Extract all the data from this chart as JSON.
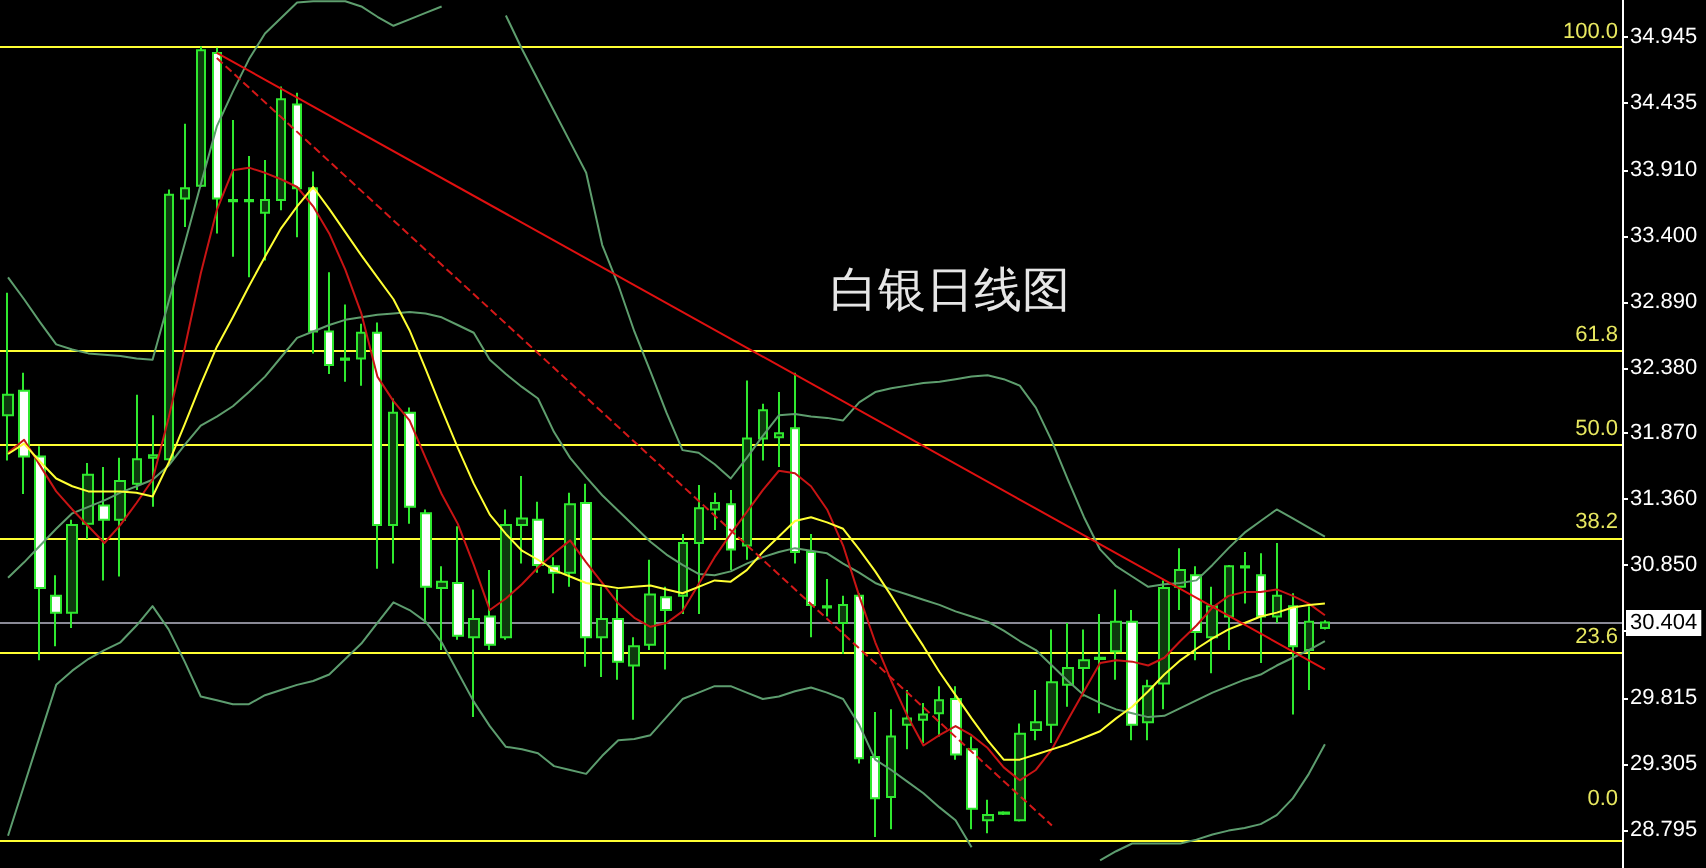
{
  "chart_data": {
    "type": "candlestick",
    "title": "白银日线图",
    "color": "#2fe82f",
    "tick_labels": "y",
    "categories": [
      null,
      null,
      null,
      null,
      null,
      null,
      null,
      null,
      null,
      null,
      null,
      null,
      null,
      null,
      null,
      null,
      null,
      null,
      null,
      null,
      null,
      null,
      null,
      null,
      null,
      null,
      null,
      null,
      null,
      null,
      null,
      null,
      null,
      null,
      null,
      null,
      null,
      null,
      null,
      null,
      null,
      null,
      null,
      null,
      null,
      null,
      null,
      null,
      null,
      null,
      null,
      null,
      null,
      null,
      null,
      null,
      null,
      null,
      null,
      null,
      null,
      null,
      null,
      null,
      null,
      null,
      null,
      null,
      null,
      null,
      null,
      null,
      null,
      null,
      null,
      null,
      null,
      null,
      null,
      null,
      null,
      null,
      null
    ],
    "ohlc": [
      [
        32.01,
        32.96,
        31.66,
        32.17
      ],
      [
        32.2,
        32.34,
        31.4,
        31.69
      ],
      [
        31.69,
        31.77,
        30.11,
        30.67
      ],
      [
        30.61,
        30.77,
        30.22,
        30.48
      ],
      [
        30.48,
        31.2,
        30.36,
        31.16
      ],
      [
        31.17,
        31.64,
        31.05,
        31.55
      ],
      [
        31.31,
        31.61,
        30.73,
        31.2
      ],
      [
        31.2,
        31.68,
        30.76,
        31.5
      ],
      [
        31.48,
        32.17,
        31.43,
        31.67
      ],
      [
        31.68,
        32.01,
        31.3,
        31.7
      ],
      [
        31.67,
        33.76,
        31.66,
        33.72
      ],
      [
        33.69,
        34.27,
        33.47,
        33.77
      ],
      [
        33.79,
        34.87,
        33.78,
        34.84
      ],
      [
        34.82,
        34.86,
        33.42,
        33.69
      ],
      [
        33.68,
        34.3,
        33.24,
        33.67
      ],
      [
        33.67,
        34.02,
        33.08,
        33.68
      ],
      [
        33.58,
        33.99,
        33.21,
        33.68
      ],
      [
        33.68,
        34.56,
        33.6,
        34.46
      ],
      [
        34.42,
        34.51,
        33.39,
        33.77
      ],
      [
        33.77,
        33.9,
        32.49,
        32.66
      ],
      [
        32.66,
        33.12,
        32.33,
        32.4
      ],
      [
        32.45,
        32.87,
        32.27,
        32.44
      ],
      [
        32.45,
        32.72,
        32.24,
        32.65
      ],
      [
        32.65,
        32.73,
        30.82,
        31.16
      ],
      [
        31.16,
        32.14,
        30.86,
        32.03
      ],
      [
        32.03,
        32.07,
        31.17,
        31.3
      ],
      [
        31.25,
        31.28,
        30.4,
        30.68
      ],
      [
        30.67,
        30.84,
        30.19,
        30.72
      ],
      [
        30.71,
        31.15,
        30.27,
        30.3
      ],
      [
        30.29,
        30.66,
        29.67,
        30.43
      ],
      [
        30.45,
        30.81,
        30.19,
        30.23
      ],
      [
        30.29,
        31.28,
        30.27,
        31.16
      ],
      [
        31.16,
        31.54,
        30.86,
        31.21
      ],
      [
        31.2,
        31.34,
        30.79,
        30.85
      ],
      [
        30.84,
        30.91,
        30.63,
        30.79
      ],
      [
        30.79,
        31.41,
        30.68,
        31.32
      ],
      [
        31.33,
        31.48,
        30.06,
        30.29
      ],
      [
        30.29,
        30.68,
        29.98,
        30.43
      ],
      [
        30.43,
        30.66,
        29.96,
        30.1
      ],
      [
        30.07,
        30.29,
        29.65,
        30.22
      ],
      [
        30.23,
        30.89,
        30.19,
        30.62
      ],
      [
        30.6,
        30.68,
        30.04,
        30.5
      ],
      [
        30.61,
        31.09,
        30.47,
        31.02
      ],
      [
        31.02,
        31.47,
        30.47,
        31.29
      ],
      [
        31.28,
        31.41,
        31.12,
        31.33
      ],
      [
        31.32,
        31.43,
        30.81,
        30.97
      ],
      [
        31,
        32.28,
        30.89,
        31.83
      ],
      [
        31.83,
        32.1,
        31.66,
        32.05
      ],
      [
        31.84,
        32.19,
        31.61,
        31.87
      ],
      [
        31.91,
        32.34,
        30.86,
        30.95
      ],
      [
        30.95,
        31.09,
        30.29,
        30.54
      ],
      [
        30.53,
        30.74,
        30.45,
        30.52
      ],
      [
        30.4,
        30.61,
        30.16,
        30.54
      ],
      [
        30.61,
        30.63,
        29.31,
        29.35
      ],
      [
        29.36,
        29.71,
        28.74,
        29.04
      ],
      [
        29.05,
        29.73,
        28.8,
        29.52
      ],
      [
        29.61,
        29.88,
        29.42,
        29.66
      ],
      [
        29.65,
        29.78,
        29.47,
        29.69
      ],
      [
        29.7,
        29.91,
        29.52,
        29.8
      ],
      [
        29.81,
        29.91,
        29.34,
        29.38
      ],
      [
        29.42,
        29.52,
        28.8,
        28.96
      ],
      [
        28.87,
        29.03,
        28.77,
        28.91
      ],
      [
        28.92,
        28.94,
        28.91,
        28.93
      ],
      [
        28.87,
        29.62,
        28.86,
        29.54
      ],
      [
        29.57,
        29.88,
        29.49,
        29.63
      ],
      [
        29.61,
        30.35,
        29.47,
        29.94
      ],
      [
        29.92,
        30.4,
        29.75,
        30.05
      ],
      [
        30.05,
        30.35,
        29.83,
        30.11
      ],
      [
        30.12,
        30.47,
        29.7,
        30.13
      ],
      [
        30.18,
        30.66,
        29.96,
        30.41
      ],
      [
        30.41,
        30.5,
        29.49,
        29.61
      ],
      [
        29.63,
        29.96,
        29.49,
        29.91
      ],
      [
        29.93,
        30.73,
        29.73,
        30.67
      ],
      [
        30.68,
        30.98,
        30.5,
        30.81
      ],
      [
        30.77,
        30.84,
        30.11,
        30.33
      ],
      [
        30.29,
        30.68,
        30.01,
        30.53
      ],
      [
        30.45,
        30.85,
        30.19,
        30.84
      ],
      [
        30.83,
        30.95,
        30.55,
        30.84
      ],
      [
        30.77,
        30.94,
        30.09,
        30.45
      ],
      [
        30.45,
        31.02,
        30.4,
        30.61
      ],
      [
        30.53,
        30.63,
        29.69,
        30.22
      ],
      [
        30.19,
        30.53,
        29.88,
        30.41
      ],
      [
        30.36,
        30.42,
        30.35,
        30.404
      ]
    ],
    "ylim": [
      28.5,
      35.23
    ],
    "yticks": [
      {
        "value": 34.945,
        "label": "34.945"
      },
      {
        "value": 34.435,
        "label": "34.435"
      },
      {
        "value": 33.91,
        "label": "33.910"
      },
      {
        "value": 33.4,
        "label": "33.400"
      },
      {
        "value": 32.89,
        "label": "32.890"
      },
      {
        "value": 32.38,
        "label": "32.380"
      },
      {
        "value": 31.87,
        "label": "31.870"
      },
      {
        "value": 31.36,
        "label": "31.360"
      },
      {
        "value": 30.85,
        "label": "30.850"
      },
      {
        "value": 30.34,
        "label": null
      },
      {
        "value": 29.815,
        "label": "29.815"
      },
      {
        "value": 29.305,
        "label": "29.305"
      },
      {
        "value": 28.795,
        "label": "28.795"
      }
    ],
    "series": [
      {
        "type": "line",
        "color": "#5e9e6e",
        "values": [
          33.08,
          32.91,
          32.73,
          32.56,
          32.52,
          32.49,
          32.48,
          32.47,
          32.45,
          32.44,
          32.89,
          33.34,
          33.8,
          34.25,
          34.52,
          34.77,
          34.97,
          35.09,
          35.21,
          35.22,
          35.22,
          35.22,
          35.18,
          35.1,
          35.03,
          35.08,
          35.13,
          35.18,
          null,
          null,
          null,
          35.11,
          34.85,
          34.61,
          34.37,
          34.13,
          33.89,
          33.33,
          33.02,
          32.66,
          32.35,
          32.03,
          31.74,
          31.72,
          31.63,
          31.52,
          31.68,
          31.85,
          32.01,
          32.02,
          32,
          31.99,
          31.97,
          32.11,
          32.19,
          32.22,
          32.24,
          32.26,
          32.27,
          32.29,
          32.31,
          32.32,
          32.29,
          32.24,
          32.07,
          31.81,
          31.51,
          31.22,
          30.97,
          30.84,
          30.76,
          30.68,
          30.7,
          30.71,
          30.73,
          30.85,
          30.98,
          31.1,
          31.19,
          31.28,
          31.21,
          31.14,
          31.07
        ]
      },
      {
        "type": "line",
        "color": "#5f9e6d",
        "values": [
          30.75,
          30.87,
          31,
          31.13,
          31.25,
          31.3,
          31.35,
          31.41,
          31.46,
          31.51,
          31.62,
          31.78,
          31.93,
          32,
          32.08,
          32.19,
          32.31,
          32.46,
          32.61,
          32.66,
          32.71,
          32.75,
          32.77,
          32.79,
          32.8,
          32.81,
          32.8,
          32.77,
          32.71,
          32.65,
          32.44,
          32.33,
          32.23,
          32.14,
          31.88,
          31.68,
          31.53,
          31.39,
          31.27,
          31.15,
          31.03,
          30.93,
          30.85,
          30.78,
          30.77,
          30.8,
          30.86,
          30.91,
          30.95,
          30.98,
          30.96,
          30.94,
          30.86,
          30.79,
          30.71,
          30.66,
          30.62,
          30.58,
          30.54,
          30.49,
          30.45,
          30.41,
          30.34,
          30.26,
          30.19,
          30.07,
          29.95,
          29.84,
          29.78,
          29.73,
          29.7,
          29.67,
          29.68,
          29.74,
          29.8,
          29.86,
          29.91,
          29.96,
          30,
          30.07,
          30.13,
          30.19,
          30.26
        ]
      },
      {
        "type": "line",
        "color": "#5d9d6f",
        "values": [
          28.75,
          29.14,
          29.53,
          29.92,
          30.03,
          30.12,
          30.19,
          30.25,
          30.38,
          30.53,
          30.35,
          30.1,
          29.83,
          29.8,
          29.77,
          29.77,
          29.84,
          29.88,
          29.92,
          29.95,
          30,
          30.12,
          30.24,
          30.4,
          30.56,
          30.5,
          30.41,
          30.25,
          30.02,
          29.79,
          29.6,
          29.44,
          29.42,
          29.39,
          29.29,
          29.26,
          29.23,
          29.37,
          29.49,
          29.5,
          29.53,
          29.67,
          29.81,
          29.86,
          29.91,
          29.91,
          29.86,
          29.81,
          29.83,
          29.87,
          29.9,
          29.86,
          29.81,
          29.61,
          29.34,
          29.26,
          29.17,
          29.08,
          28.97,
          28.87,
          28.66,
          null,
          null,
          null,
          null,
          null,
          null,
          null,
          28.56,
          28.63,
          28.69,
          28.69,
          28.69,
          28.69,
          28.72,
          28.76,
          28.79,
          28.81,
          28.84,
          28.91,
          29.04,
          29.23,
          29.46
        ]
      },
      {
        "type": "line",
        "color": "#c81414",
        "values": [
          31.72,
          31.82,
          31.62,
          31.42,
          31.28,
          31.15,
          31.02,
          31.16,
          31.33,
          31.51,
          31.99,
          32.53,
          33.11,
          33.6,
          33.91,
          33.93,
          33.89,
          33.84,
          33.78,
          33.63,
          33.42,
          33.14,
          32.8,
          32.31,
          32.12,
          31.97,
          31.68,
          31.4,
          31.17,
          30.85,
          30.5,
          30.59,
          30.7,
          30.83,
          30.94,
          31.04,
          30.87,
          30.71,
          30.55,
          30.44,
          30.37,
          30.4,
          30.49,
          30.7,
          30.91,
          31.09,
          31.26,
          31.43,
          31.58,
          31.56,
          31.46,
          31.28,
          31,
          30.61,
          30.25,
          29.95,
          29.68,
          29.45,
          29.53,
          29.6,
          29.53,
          29.43,
          29.28,
          29.18,
          29.26,
          29.42,
          29.65,
          29.87,
          30.09,
          30.11,
          30.1,
          30.07,
          30.13,
          30.26,
          30.38,
          30.52,
          30.61,
          30.64,
          30.64,
          30.66,
          30.61,
          30.55,
          30.46
        ]
      },
      {
        "type": "line",
        "color": "#ffff33",
        "values": [
          31.71,
          31.79,
          31.65,
          31.52,
          31.46,
          31.42,
          31.42,
          31.42,
          31.41,
          31.38,
          31.64,
          31.94,
          32.25,
          32.54,
          32.77,
          33.01,
          33.24,
          33.46,
          33.63,
          33.78,
          33.61,
          33.43,
          33.25,
          33.08,
          32.91,
          32.67,
          32.37,
          32.06,
          31.76,
          31.48,
          31.24,
          31.09,
          30.96,
          30.89,
          30.81,
          30.76,
          30.71,
          30.69,
          30.67,
          30.68,
          30.69,
          30.66,
          30.63,
          30.68,
          30.73,
          30.72,
          30.81,
          30.95,
          31.07,
          31.19,
          31.22,
          31.18,
          31.13,
          30.97,
          30.8,
          30.61,
          30.41,
          30.22,
          30.02,
          29.84,
          29.66,
          29.49,
          29.34,
          29.34,
          29.38,
          29.42,
          29.46,
          29.51,
          29.56,
          29.66,
          29.75,
          29.87,
          30,
          30.11,
          30.2,
          30.28,
          30.35,
          30.4,
          30.45,
          30.48,
          30.52,
          30.54,
          30.55
        ]
      },
      {
        "type": "line",
        "color": "#e01010",
        "values": [
          null,
          null,
          null,
          null,
          null,
          null,
          null,
          null,
          null,
          null,
          null,
          null,
          null,
          34.82,
          null,
          null,
          null,
          null,
          null,
          null,
          null,
          null,
          null,
          null,
          null,
          null,
          null,
          null,
          null,
          null,
          null,
          null,
          null,
          null,
          null,
          null,
          null,
          null,
          null,
          null,
          null,
          null,
          null,
          null,
          null,
          null,
          null,
          null,
          null,
          null,
          null,
          null,
          null,
          null,
          null,
          null,
          null,
          null,
          null,
          null,
          null,
          null,
          null,
          null,
          null,
          null,
          null,
          null,
          null,
          null,
          null,
          null,
          null,
          null,
          null,
          null,
          null,
          null,
          null,
          null,
          null,
          null,
          30.04
        ]
      },
      {
        "type": "line",
        "color": "#d41818",
        "line_style": "dashed",
        "values": [
          null,
          null,
          null,
          null,
          null,
          null,
          null,
          null,
          null,
          null,
          null,
          null,
          null,
          34.78,
          null,
          null,
          null,
          null,
          null,
          null,
          null,
          null,
          null,
          null,
          null,
          null,
          null,
          null,
          null,
          null,
          null,
          null,
          null,
          null,
          null,
          null,
          null,
          null,
          null,
          null,
          null,
          null,
          null,
          null,
          null,
          null,
          null,
          null,
          null,
          null,
          null,
          null,
          null,
          null,
          null,
          null,
          null,
          null,
          null,
          null,
          null,
          null,
          null,
          null,
          null,
          28.83,
          null,
          null,
          null,
          null,
          null,
          null,
          null,
          null,
          null,
          null,
          null,
          null,
          null,
          null,
          null,
          null,
          null
        ]
      }
    ],
    "ref_lines": [
      {
        "axis": "y",
        "value": 34.867,
        "color": "#ffff33"
      },
      {
        "axis": "y",
        "value": 32.516,
        "color": "#ffff33"
      },
      {
        "axis": "y",
        "value": 31.787,
        "color": "#ffff33"
      },
      {
        "axis": "y",
        "value": 31.064,
        "color": "#ffff33"
      },
      {
        "axis": "y",
        "value": 30.174,
        "color": "#ffff33"
      },
      {
        "axis": "y",
        "value": 28.717,
        "color": "#ffff33"
      },
      {
        "axis": "y",
        "value": 30.404,
        "label": "30.404",
        "color": "#8a8a96"
      }
    ],
    "annotations": [
      {
        "text": "100.0",
        "y": 34.867
      },
      {
        "text": "61.8",
        "y": 32.516
      },
      {
        "text": "50.0",
        "y": 31.787
      },
      {
        "text": "38.2",
        "y": 31.064
      },
      {
        "text": "23.6",
        "y": 30.174
      },
      {
        "text": "0.0",
        "y": 28.717
      }
    ]
  }
}
